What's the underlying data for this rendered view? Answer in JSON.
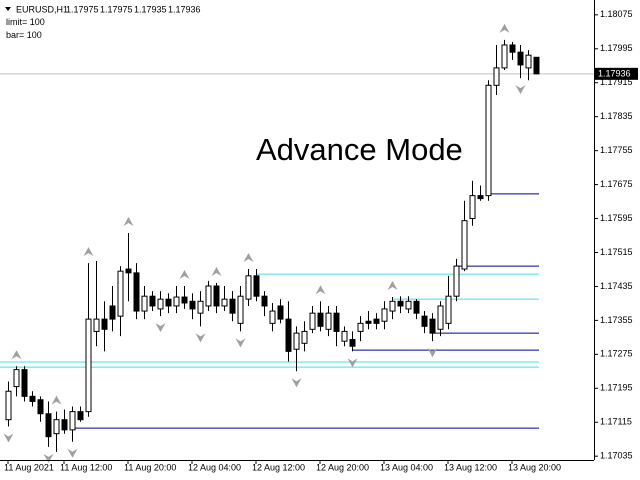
{
  "chart_data": {
    "type": "candlestick",
    "symbol": "EURUSD,H1",
    "header_prices": [
      1.17975,
      1.17975,
      1.17935,
      1.17936
    ],
    "params": [
      {
        "label": "limit=",
        "value": 100
      },
      {
        "label": "bar=",
        "value": 100
      }
    ],
    "annotation": "Advance Mode",
    "current_price": 1.17936,
    "categories": [
      "11 Aug 2021",
      null,
      null,
      null,
      null,
      null,
      null,
      "11 Aug 12:00",
      null,
      null,
      null,
      null,
      null,
      null,
      null,
      "11 Aug 20:00",
      null,
      null,
      null,
      null,
      null,
      null,
      null,
      "12 Aug 04:00",
      null,
      null,
      null,
      null,
      null,
      null,
      null,
      "12 Aug 12:00",
      null,
      null,
      null,
      null,
      null,
      null,
      null,
      "12 Aug 20:00",
      null,
      null,
      null,
      null,
      null,
      null,
      null,
      "13 Aug 04:00",
      null,
      null,
      null,
      null,
      null,
      null,
      null,
      "13 Aug 12:00",
      null,
      null,
      null,
      null,
      null,
      null,
      null,
      "13 Aug 20:00",
      null,
      null,
      null
    ],
    "open": [
      1.17121,
      1.17199,
      1.17239,
      1.17176,
      1.17168,
      1.17135,
      1.17088,
      1.17121,
      1.17097,
      1.1714,
      1.1714,
      1.17329,
      1.17358,
      1.17389,
      1.17365,
      1.17476,
      1.17467,
      1.17377,
      1.17412,
      1.17382,
      1.17405,
      1.17389,
      1.1741,
      1.174,
      1.17372,
      1.17389,
      1.17436,
      1.17389,
      1.17405,
      1.17348,
      1.17405,
      1.1746,
      1.17412,
      1.17348,
      1.17389,
      1.17358,
      1.17287,
      1.17301,
      1.17334,
      1.17372,
      1.17334,
      1.17372,
      1.17306,
      1.1731,
      1.17329,
      1.17353,
      1.17358,
      1.17353,
      1.17377,
      1.174,
      1.17382,
      1.174,
      1.17365,
      1.17358,
      1.17334,
      1.17348,
      1.17412,
      1.17476,
      1.17595,
      1.17649,
      1.17649,
      1.17909,
      1.1795,
      1.18004,
      1.17987,
      1.1795,
      1.17975
    ],
    "high": [
      1.17211,
      1.17247,
      1.17247,
      1.17188,
      1.17176,
      1.17164,
      1.1714,
      1.17145,
      1.17152,
      1.17152,
      1.1749,
      1.17495,
      1.174,
      1.17436,
      1.17483,
      1.17561,
      1.1749,
      1.17436,
      1.17424,
      1.17424,
      1.17419,
      1.17436,
      1.17436,
      1.17419,
      1.17424,
      1.17448,
      1.17443,
      1.17436,
      1.17424,
      1.17436,
      1.17476,
      1.17476,
      1.17424,
      1.17396,
      1.17405,
      1.174,
      1.17341,
      1.17353,
      1.17389,
      1.174,
      1.17389,
      1.17389,
      1.17341,
      1.17329,
      1.17365,
      1.17377,
      1.17372,
      1.174,
      1.1741,
      1.17412,
      1.17412,
      1.17405,
      1.17377,
      1.17372,
      1.174,
      1.1746,
      1.175,
      1.17637,
      1.17684,
      1.17673,
      1.17921,
      1.18004,
      1.18016,
      1.18011,
      1.18004,
      1.17992,
      1.17975
    ],
    "low": [
      1.17105,
      1.17176,
      1.17164,
      1.17152,
      1.17116,
      1.17057,
      1.17045,
      1.17088,
      1.17069,
      1.17116,
      1.17128,
      1.17294,
      1.17282,
      1.17329,
      1.17318,
      1.174,
      1.17358,
      1.17358,
      1.17377,
      1.17365,
      1.17372,
      1.17372,
      1.17382,
      1.17358,
      1.17341,
      1.17377,
      1.17372,
      1.17377,
      1.17353,
      1.17329,
      1.17389,
      1.174,
      1.17365,
      1.17329,
      1.17348,
      1.17258,
      1.17235,
      1.17282,
      1.17325,
      1.17329,
      1.17318,
      1.17294,
      1.17294,
      1.17282,
      1.17306,
      1.17334,
      1.17334,
      1.17334,
      1.17358,
      1.17372,
      1.17372,
      1.17358,
      1.17325,
      1.17306,
      1.17318,
      1.17334,
      1.174,
      1.17471,
      1.17578,
      1.17637,
      1.17637,
      1.17886,
      1.17945,
      1.17969,
      1.17926,
      1.17921,
      1.17935
    ],
    "close": [
      1.17188,
      1.17239,
      1.17176,
      1.17164,
      1.17135,
      1.17081,
      1.17121,
      1.17097,
      1.1714,
      1.17121,
      1.17358,
      1.17358,
      1.17334,
      1.17358,
      1.17471,
      1.17467,
      1.17377,
      1.17412,
      1.17389,
      1.17405,
      1.17389,
      1.1741,
      1.17396,
      1.17382,
      1.174,
      1.17436,
      1.17389,
      1.17405,
      1.17372,
      1.17412,
      1.1746,
      1.17412,
      1.17389,
      1.17377,
      1.17358,
      1.17282,
      1.17325,
      1.17329,
      1.17372,
      1.17341,
      1.17372,
      1.17329,
      1.17329,
      1.17294,
      1.17348,
      1.17348,
      1.17348,
      1.17382,
      1.174,
      1.17389,
      1.174,
      1.17372,
      1.17341,
      1.17325,
      1.17389,
      1.17412,
      1.17483,
      1.1759,
      1.17649,
      1.17642,
      1.17909,
      1.1795,
      1.18004,
      1.17987,
      1.17957,
      1.1798,
      1.17936
    ],
    "bull_color": "#ffffff",
    "bear_color": "#000000",
    "outline_color": "#000000",
    "fractals_up": [
      1,
      6,
      10,
      15,
      22,
      26,
      30,
      39,
      48,
      62
    ],
    "fractals_down": [
      0,
      5,
      8,
      19,
      24,
      29,
      36,
      43,
      53,
      64
    ],
    "levels": [
      {
        "price": 1.17464,
        "color": "#40e0e8",
        "from": 31
      },
      {
        "price": 1.17405,
        "color": "#40e0e8",
        "from": 48
      },
      {
        "price": 1.17257,
        "color": "#40e0e8",
        "from": 0
      },
      {
        "price": 1.17245,
        "color": "#40e0e8",
        "from": 0
      },
      {
        "price": 1.17653,
        "color": "#00008b",
        "from": 60
      },
      {
        "price": 1.17483,
        "color": "#00008b",
        "from": 56
      },
      {
        "price": 1.17325,
        "color": "#00008b",
        "from": 53
      },
      {
        "price": 1.17285,
        "color": "#00008b",
        "from": 43
      },
      {
        "price": 1.17101,
        "color": "#00008b",
        "from": 8
      }
    ],
    "ylim": [
      1.17026,
      1.1811
    ],
    "yticks": [
      1.18075,
      1.17995,
      1.17915,
      1.17835,
      1.17755,
      1.17675,
      1.17595,
      1.17515,
      1.17435,
      1.17355,
      1.17275,
      1.17195,
      1.17115,
      1.17035
    ]
  }
}
